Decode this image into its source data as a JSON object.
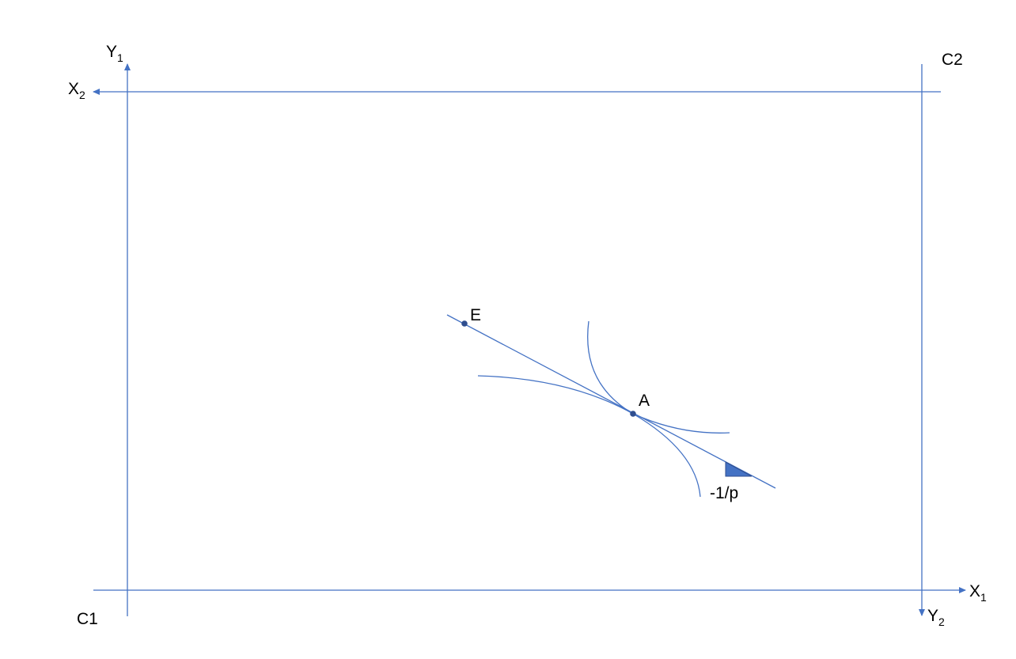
{
  "colors": {
    "line": "#4472c4",
    "point": "#2f4e8f",
    "text": "#000000"
  },
  "origins": {
    "consumer1": "C1",
    "consumer2": "C2"
  },
  "axes": {
    "x1": {
      "base": "X",
      "sub": "1"
    },
    "y1": {
      "base": "Y",
      "sub": "1"
    },
    "x2": {
      "base": "X",
      "sub": "2"
    },
    "y2": {
      "base": "Y",
      "sub": "2"
    }
  },
  "points": {
    "endowment": "E",
    "allocation": "A"
  },
  "slope_label": "-1/p"
}
